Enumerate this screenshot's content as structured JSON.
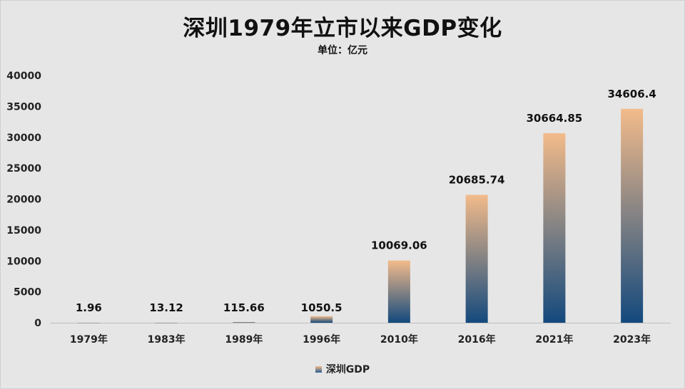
{
  "title": "深圳1979年立市以来GDP变化",
  "subtitle": "单位：亿元",
  "chart_data": {
    "type": "bar",
    "categories": [
      "1979年",
      "1983年",
      "1989年",
      "1996年",
      "2010年",
      "2016年",
      "2021年",
      "2023年"
    ],
    "series": [
      {
        "name": "深圳GDP",
        "values": [
          1.96,
          13.12,
          115.66,
          1050.5,
          10069.06,
          20685.74,
          30664.85,
          34606.4
        ]
      }
    ],
    "data_labels": [
      "1.96",
      "13.12",
      "115.66",
      "1050.5",
      "10069.06",
      "20685.74",
      "30664.85",
      "34606.4"
    ],
    "ylim": [
      0,
      40000
    ],
    "yticks": [
      0,
      5000,
      10000,
      15000,
      20000,
      25000,
      30000,
      35000,
      40000
    ],
    "grid": false,
    "legend_position": "bottom",
    "colors": {
      "bar_top": "#f3bb8a",
      "bar_bottom": "#13497d"
    }
  }
}
